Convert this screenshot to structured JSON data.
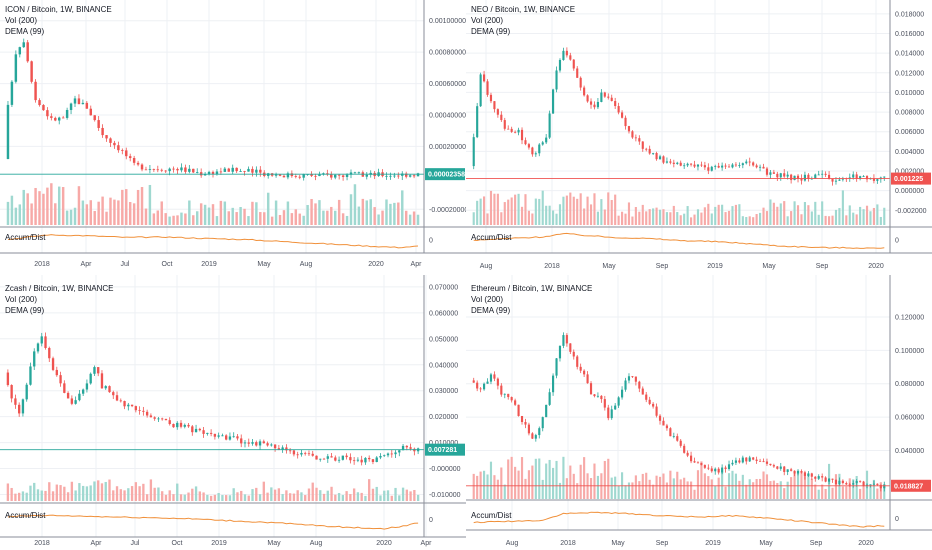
{
  "colors": {
    "up": "#26a69a",
    "down": "#ef5350",
    "vol_up": "#9fd8d0",
    "vol_down": "#f7a9a7",
    "accum": "#f0903a",
    "teal_badge": "#26a69a",
    "red_badge": "#ef5350"
  },
  "chart_data": [
    {
      "type": "candlestick",
      "title": "ICON / Bitcoin, 1W, BINANCE",
      "indicators": [
        "Vol (200)",
        "DEMA (99)"
      ],
      "sub_indicator": "Accum/Dist",
      "x_labels": [
        "2018",
        "Apr",
        "Jul",
        "Oct",
        "2019",
        "May",
        "Aug",
        "2020",
        "Apr"
      ],
      "y_ticks": [
        "0.00100000",
        "0.00080000",
        "0.00060000",
        "0.00040000",
        "0.00020000",
        "-0.00020000"
      ],
      "y_range": [
        -0.0003,
        0.0011
      ],
      "sub_ticks": [
        "0"
      ],
      "last_price_label": "0.00002358",
      "last_price": 2.358e-05,
      "last_price_color": "teal",
      "bars": 105,
      "path": [
        [
          0,
          0.00012
        ],
        [
          1,
          0.00045
        ],
        [
          3,
          0.0008
        ],
        [
          5,
          0.00088
        ],
        [
          8,
          0.0005
        ],
        [
          12,
          0.00037
        ],
        [
          15,
          0.00038
        ],
        [
          18,
          0.0005
        ],
        [
          21,
          0.00045
        ],
        [
          25,
          0.00028
        ],
        [
          30,
          0.00017
        ],
        [
          33,
          8e-05
        ],
        [
          38,
          6e-05
        ],
        [
          44,
          6e-05
        ],
        [
          50,
          3e-05
        ],
        [
          57,
          5e-05
        ],
        [
          62,
          4e-05
        ],
        [
          70,
          2e-05
        ],
        [
          80,
          1.5e-05
        ],
        [
          90,
          1.8e-05
        ],
        [
          104,
          2.4e-05
        ]
      ],
      "accum_path": [
        [
          0,
          0.5
        ],
        [
          10,
          0.72
        ],
        [
          20,
          0.68
        ],
        [
          30,
          0.6
        ],
        [
          40,
          0.62
        ],
        [
          50,
          0.55
        ],
        [
          60,
          0.5
        ],
        [
          70,
          0.4
        ],
        [
          80,
          0.3
        ],
        [
          90,
          0.2
        ],
        [
          99,
          0.12
        ],
        [
          104,
          0.18
        ]
      ]
    },
    {
      "type": "candlestick",
      "title": "NEO / Bitcoin, 1W, BINANCE",
      "indicators": [
        "Vol (200)",
        "DEMA (99)"
      ],
      "sub_indicator": "Accum/Dist",
      "x_labels": [
        "Aug",
        "2018",
        "May",
        "Sep",
        "2019",
        "May",
        "Sep",
        "2020"
      ],
      "y_ticks": [
        "0.018000",
        "0.016000",
        "0.014000",
        "0.012000",
        "0.010000",
        "0.008000",
        "0.006000",
        "0.004000",
        "0.002000",
        "0.000000",
        "-0.002000"
      ],
      "y_range": [
        -0.0035,
        0.0188
      ],
      "sub_ticks": [
        "0"
      ],
      "last_price_label": "0.001225",
      "last_price": 0.001225,
      "last_price_color": "red",
      "bars": 120,
      "path": [
        [
          0,
          0.0025
        ],
        [
          3,
          0.012
        ],
        [
          6,
          0.009
        ],
        [
          10,
          0.0065
        ],
        [
          14,
          0.006
        ],
        [
          18,
          0.0035
        ],
        [
          22,
          0.0055
        ],
        [
          25,
          0.0125
        ],
        [
          27,
          0.0145
        ],
        [
          30,
          0.0125
        ],
        [
          33,
          0.0095
        ],
        [
          36,
          0.0085
        ],
        [
          38,
          0.01
        ],
        [
          42,
          0.0085
        ],
        [
          46,
          0.006
        ],
        [
          50,
          0.0045
        ],
        [
          55,
          0.0032
        ],
        [
          60,
          0.0028
        ],
        [
          65,
          0.0025
        ],
        [
          70,
          0.0022
        ],
        [
          75,
          0.0025
        ],
        [
          80,
          0.0028
        ],
        [
          85,
          0.002
        ],
        [
          90,
          0.0015
        ],
        [
          95,
          0.0012
        ],
        [
          100,
          0.0016
        ],
        [
          105,
          0.0012
        ],
        [
          110,
          0.0015
        ],
        [
          119,
          0.0012
        ]
      ],
      "accum_path": [
        [
          0,
          0.45
        ],
        [
          10,
          0.55
        ],
        [
          20,
          0.62
        ],
        [
          26,
          0.78
        ],
        [
          32,
          0.7
        ],
        [
          40,
          0.6
        ],
        [
          50,
          0.55
        ],
        [
          60,
          0.45
        ],
        [
          70,
          0.4
        ],
        [
          80,
          0.3
        ],
        [
          90,
          0.18
        ],
        [
          100,
          0.12
        ],
        [
          110,
          0.1
        ],
        [
          119,
          0.08
        ]
      ]
    },
    {
      "type": "candlestick",
      "title": "Zcash / Bitcoin, 1W, BINANCE",
      "indicators": [
        "Vol (200)",
        "DEMA (99)"
      ],
      "sub_indicator": "Accum/Dist",
      "x_labels": [
        "2018",
        "Apr",
        "Jul",
        "Oct",
        "2019",
        "May",
        "Aug",
        "2020",
        "Apr"
      ],
      "y_ticks": [
        "0.070000",
        "0.060000",
        "0.050000",
        "0.040000",
        "0.030000",
        "0.020000",
        "0.010000",
        "-0.000000",
        "-0.010000"
      ],
      "y_range": [
        -0.0125,
        0.0715
      ],
      "sub_ticks": [
        "0"
      ],
      "last_price_label": "0.007281",
      "last_price": 0.007281,
      "last_price_color": "teal",
      "bars": 110,
      "path": [
        [
          0,
          0.037
        ],
        [
          2,
          0.028
        ],
        [
          4,
          0.022
        ],
        [
          6,
          0.033
        ],
        [
          8,
          0.045
        ],
        [
          10,
          0.05
        ],
        [
          12,
          0.043
        ],
        [
          14,
          0.035
        ],
        [
          16,
          0.03
        ],
        [
          18,
          0.026
        ],
        [
          20,
          0.028
        ],
        [
          22,
          0.033
        ],
        [
          24,
          0.04
        ],
        [
          26,
          0.032
        ],
        [
          30,
          0.027
        ],
        [
          35,
          0.022
        ],
        [
          40,
          0.019
        ],
        [
          45,
          0.017
        ],
        [
          50,
          0.015
        ],
        [
          55,
          0.013
        ],
        [
          60,
          0.012
        ],
        [
          65,
          0.01
        ],
        [
          70,
          0.009
        ],
        [
          75,
          0.007
        ],
        [
          80,
          0.005
        ],
        [
          85,
          0.004
        ],
        [
          90,
          0.004
        ],
        [
          95,
          0.003
        ],
        [
          100,
          0.004
        ],
        [
          104,
          0.006
        ],
        [
          106,
          0.0085
        ],
        [
          109,
          0.0073
        ]
      ],
      "accum_path": [
        [
          0,
          0.6
        ],
        [
          10,
          0.65
        ],
        [
          20,
          0.62
        ],
        [
          30,
          0.58
        ],
        [
          40,
          0.55
        ],
        [
          50,
          0.5
        ],
        [
          60,
          0.42
        ],
        [
          70,
          0.35
        ],
        [
          80,
          0.25
        ],
        [
          90,
          0.15
        ],
        [
          100,
          0.1
        ],
        [
          105,
          0.2
        ],
        [
          109,
          0.35
        ]
      ]
    },
    {
      "type": "candlestick",
      "title": "Ethereum / Bitcoin, 1W, BINANCE",
      "indicators": [
        "Vol (200)",
        "DEMA (99)"
      ],
      "sub_indicator": "Accum/Dist",
      "x_labels": [
        "Aug",
        "2018",
        "May",
        "Sep",
        "2019",
        "May",
        "Sep",
        "2020"
      ],
      "y_ticks": [
        "0.120000",
        "0.100000",
        "0.080000",
        "0.060000",
        "0.040000"
      ],
      "y_range": [
        0.0115,
        0.132
      ],
      "sub_ticks": [
        "0"
      ],
      "last_price_label": "0.018827",
      "last_price": 0.018827,
      "last_price_color": "red",
      "bars": 120,
      "path": [
        [
          0,
          0.082
        ],
        [
          3,
          0.077
        ],
        [
          6,
          0.085
        ],
        [
          9,
          0.075
        ],
        [
          12,
          0.07
        ],
        [
          15,
          0.058
        ],
        [
          18,
          0.048
        ],
        [
          20,
          0.052
        ],
        [
          23,
          0.075
        ],
        [
          25,
          0.095
        ],
        [
          27,
          0.108
        ],
        [
          29,
          0.1
        ],
        [
          31,
          0.09
        ],
        [
          33,
          0.085
        ],
        [
          35,
          0.075
        ],
        [
          38,
          0.07
        ],
        [
          40,
          0.06
        ],
        [
          42,
          0.068
        ],
        [
          44,
          0.078
        ],
        [
          46,
          0.085
        ],
        [
          48,
          0.082
        ],
        [
          50,
          0.075
        ],
        [
          53,
          0.065
        ],
        [
          56,
          0.055
        ],
        [
          60,
          0.045
        ],
        [
          64,
          0.035
        ],
        [
          68,
          0.03
        ],
        [
          72,
          0.028
        ],
        [
          76,
          0.032
        ],
        [
          80,
          0.035
        ],
        [
          84,
          0.033
        ],
        [
          88,
          0.03
        ],
        [
          92,
          0.028
        ],
        [
          96,
          0.026
        ],
        [
          100,
          0.024
        ],
        [
          104,
          0.022
        ],
        [
          108,
          0.02
        ],
        [
          112,
          0.021
        ],
        [
          116,
          0.019
        ],
        [
          119,
          0.0188
        ]
      ],
      "accum_path": [
        [
          0,
          0.3
        ],
        [
          10,
          0.35
        ],
        [
          20,
          0.4
        ],
        [
          26,
          0.7
        ],
        [
          35,
          0.75
        ],
        [
          45,
          0.7
        ],
        [
          55,
          0.6
        ],
        [
          65,
          0.55
        ],
        [
          75,
          0.6
        ],
        [
          85,
          0.5
        ],
        [
          95,
          0.35
        ],
        [
          105,
          0.2
        ],
        [
          112,
          0.1
        ],
        [
          119,
          0.15
        ]
      ]
    }
  ]
}
